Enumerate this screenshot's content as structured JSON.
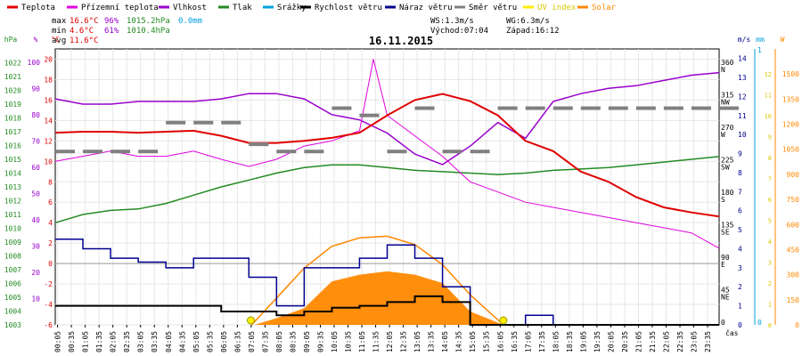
{
  "chart_data": {
    "type": "line",
    "title": "16.11.2015",
    "legend": [
      {
        "key": "teplota",
        "label": "Teplota",
        "color": "#e00000"
      },
      {
        "key": "pocit",
        "label": "Přízemní teplota",
        "color": "#e000e0"
      },
      {
        "key": "vlhkost",
        "label": "Vlhkost",
        "color": "#9900cc"
      },
      {
        "key": "tlak",
        "label": "Tlak",
        "color": "#228b22"
      },
      {
        "key": "srazky",
        "label": "Srážky",
        "color": "#00a0e0"
      },
      {
        "key": "rychlost",
        "label": "Rychlost větru",
        "color": "#000000"
      },
      {
        "key": "naraz",
        "label": "Náraz větru",
        "color": "#000090"
      },
      {
        "key": "smer",
        "label": "Směr větru",
        "color": "#808080"
      },
      {
        "key": "uv",
        "label": "UV index",
        "color": "#ffee00"
      },
      {
        "key": "solar",
        "label": "Solar",
        "color": "#ff8800"
      }
    ],
    "stats": {
      "max": {
        "label": "max",
        "temp": "16.6°C",
        "hum": "96%",
        "press": "1015.2hPa",
        "rain": "0.0mm"
      },
      "min": {
        "label": "min",
        "temp": "4.6°C",
        "hum": "61%",
        "press": "1010.4hPa"
      },
      "avg": {
        "label": "avg",
        "temp": "11.6°C"
      }
    },
    "wind_info": {
      "ws": "WS:1.3m/s",
      "wg": "WG:6.3m/s",
      "sunrise": "Východ:07:04",
      "sunset": "Západ:16:12"
    },
    "axes": {
      "hpa": {
        "unit": "hPa",
        "ticks": [
          "1022",
          "1021",
          "1020",
          "1019",
          "1018",
          "1017",
          "1016",
          "1015",
          "1014",
          "1013",
          "1012",
          "1011",
          "1010",
          "1009",
          "1008",
          "1007",
          "1006",
          "1005",
          "1004",
          "1003"
        ]
      },
      "pct": {
        "unit": "%",
        "ticks": [
          "100",
          "90",
          "80",
          "70",
          "60",
          "50",
          "40",
          "30",
          "20",
          "10"
        ]
      },
      "temp": {
        "unit": "°C",
        "ticks": [
          "20",
          "18",
          "16",
          "14",
          "12",
          "10",
          "8",
          "6",
          "4",
          "2",
          "0",
          "-2",
          "-4",
          "-6"
        ]
      },
      "dir": {
        "ticks": [
          {
            "v": "360",
            "l": "N"
          },
          {
            "v": "315",
            "l": "NW"
          },
          {
            "v": "270",
            "l": "W"
          },
          {
            "v": "225",
            "l": "SW"
          },
          {
            "v": "180",
            "l": "S"
          },
          {
            "v": "135",
            "l": "SE"
          },
          {
            "v": "90",
            "l": "E"
          },
          {
            "v": "45",
            "l": "NE"
          },
          {
            "v": "0",
            "l": ""
          }
        ]
      },
      "ms": {
        "unit": "m/s",
        "ticks": [
          "14",
          "13",
          "12",
          "11",
          "10",
          "9",
          "8",
          "7",
          "6",
          "5",
          "4",
          "3",
          "2",
          "1",
          "0"
        ]
      },
      "mm": {
        "unit": "mm",
        "ticks": [
          "1",
          "0"
        ]
      },
      "w": {
        "unit": "W",
        "ticks": [
          "1500",
          "1350",
          "1200",
          "1050",
          "900",
          "750",
          "600",
          "450",
          "300",
          "150",
          "0"
        ]
      },
      "uv": {
        "ticks": [
          "12",
          "11",
          "10",
          "9",
          "8",
          "7",
          "6",
          "5",
          "4",
          "3",
          "2",
          "1",
          "0"
        ]
      },
      "x_label": "čas",
      "x_ticks": [
        "00:05",
        "00:35",
        "01:05",
        "01:35",
        "02:05",
        "02:35",
        "03:05",
        "03:35",
        "04:05",
        "04:35",
        "05:05",
        "05:35",
        "06:05",
        "06:35",
        "07:05",
        "07:35",
        "08:05",
        "08:35",
        "09:05",
        "09:35",
        "10:05",
        "10:35",
        "11:05",
        "11:35",
        "12:05",
        "12:35",
        "13:05",
        "13:35",
        "14:05",
        "14:35",
        "15:05",
        "15:35",
        "16:05",
        "16:35",
        "17:05",
        "17:35",
        "18:05",
        "18:35",
        "19:05",
        "19:35",
        "20:05",
        "20:35",
        "21:05",
        "21:35",
        "22:05",
        "22:35",
        "23:05",
        "23:35"
      ]
    },
    "series": {
      "teplota": {
        "unit": "°C",
        "points": [
          [
            0,
            12.8
          ],
          [
            1,
            12.9
          ],
          [
            2,
            12.9
          ],
          [
            3,
            12.8
          ],
          [
            4,
            12.9
          ],
          [
            5,
            13.0
          ],
          [
            6,
            12.5
          ],
          [
            7,
            11.8
          ],
          [
            8,
            11.8
          ],
          [
            9,
            12.0
          ],
          [
            10,
            12.3
          ],
          [
            11,
            12.8
          ],
          [
            12,
            14.5
          ],
          [
            13,
            16.0
          ],
          [
            14,
            16.6
          ],
          [
            15,
            15.9
          ],
          [
            16,
            14.5
          ],
          [
            17,
            12.0
          ],
          [
            18,
            11.0
          ],
          [
            19,
            9.0
          ],
          [
            20,
            8.0
          ],
          [
            21,
            6.5
          ],
          [
            22,
            5.5
          ],
          [
            23,
            5.0
          ],
          [
            24,
            4.6
          ]
        ]
      },
      "pocit": {
        "unit": "°C",
        "points": [
          [
            0,
            10.0
          ],
          [
            1,
            10.5
          ],
          [
            2,
            11.0
          ],
          [
            3,
            10.5
          ],
          [
            4,
            10.5
          ],
          [
            5,
            11.0
          ],
          [
            6,
            10.2
          ],
          [
            7,
            9.5
          ],
          [
            8,
            10.2
          ],
          [
            9,
            11.5
          ],
          [
            10,
            12.0
          ],
          [
            11,
            13.0
          ],
          [
            11.5,
            20.0
          ],
          [
            12,
            14.5
          ],
          [
            13,
            12.5
          ],
          [
            14,
            10.5
          ],
          [
            15,
            8.0
          ],
          [
            16,
            7.0
          ],
          [
            17,
            6.0
          ],
          [
            18,
            5.5
          ],
          [
            19,
            5.0
          ],
          [
            20,
            4.5
          ],
          [
            21,
            4.0
          ],
          [
            22,
            3.5
          ],
          [
            23,
            3.0
          ],
          [
            24,
            1.5
          ]
        ]
      },
      "vlhkost": {
        "unit": "%",
        "points": [
          [
            0,
            86
          ],
          [
            1,
            84
          ],
          [
            2,
            84
          ],
          [
            3,
            85
          ],
          [
            4,
            85
          ],
          [
            5,
            85
          ],
          [
            6,
            86
          ],
          [
            7,
            88
          ],
          [
            8,
            88
          ],
          [
            9,
            86
          ],
          [
            10,
            80
          ],
          [
            11,
            78
          ],
          [
            12,
            73
          ],
          [
            13,
            65
          ],
          [
            14,
            61
          ],
          [
            15,
            68
          ],
          [
            16,
            77
          ],
          [
            17,
            71
          ],
          [
            18,
            85
          ],
          [
            19,
            88
          ],
          [
            20,
            90
          ],
          [
            21,
            91
          ],
          [
            22,
            93
          ],
          [
            23,
            95
          ],
          [
            24,
            96
          ]
        ]
      },
      "tlak": {
        "unit": "hPa",
        "points": [
          [
            0,
            1010.4
          ],
          [
            1,
            1011.0
          ],
          [
            2,
            1011.3
          ],
          [
            3,
            1011.4
          ],
          [
            4,
            1011.8
          ],
          [
            5,
            1012.4
          ],
          [
            6,
            1013.0
          ],
          [
            7,
            1013.5
          ],
          [
            8,
            1014.0
          ],
          [
            9,
            1014.4
          ],
          [
            10,
            1014.6
          ],
          [
            11,
            1014.6
          ],
          [
            12,
            1014.4
          ],
          [
            13,
            1014.2
          ],
          [
            14,
            1014.1
          ],
          [
            15,
            1014.0
          ],
          [
            16,
            1013.9
          ],
          [
            17,
            1014.0
          ],
          [
            18,
            1014.2
          ],
          [
            19,
            1014.3
          ],
          [
            20,
            1014.4
          ],
          [
            21,
            1014.6
          ],
          [
            22,
            1014.8
          ],
          [
            23,
            1015.0
          ],
          [
            24,
            1015.2
          ]
        ]
      },
      "rychlost": {
        "unit": "m/s",
        "points": [
          [
            0,
            1
          ],
          [
            1,
            1
          ],
          [
            2,
            1
          ],
          [
            3,
            1
          ],
          [
            4,
            1
          ],
          [
            5,
            1
          ],
          [
            6,
            0.7
          ],
          [
            7,
            0.7
          ],
          [
            8,
            0.5
          ],
          [
            9,
            0.7
          ],
          [
            10,
            0.9
          ],
          [
            11,
            1.0
          ],
          [
            12,
            1.2
          ],
          [
            13,
            1.5
          ],
          [
            14,
            1.2
          ],
          [
            15,
            0
          ],
          [
            16,
            0
          ],
          [
            17,
            0
          ],
          [
            18,
            0
          ],
          [
            19,
            0
          ],
          [
            20,
            0
          ],
          [
            21,
            0
          ],
          [
            22,
            0
          ],
          [
            23,
            0
          ],
          [
            24,
            0
          ]
        ]
      },
      "naraz": {
        "unit": "m/s",
        "points": [
          [
            0,
            4.5
          ],
          [
            1,
            4.0
          ],
          [
            2,
            3.5
          ],
          [
            3,
            3.3
          ],
          [
            4,
            3.0
          ],
          [
            5,
            3.5
          ],
          [
            6,
            3.5
          ],
          [
            7,
            2.5
          ],
          [
            8,
            1.0
          ],
          [
            9,
            3.0
          ],
          [
            10,
            3.0
          ],
          [
            11,
            3.5
          ],
          [
            12,
            4.2
          ],
          [
            13,
            3.5
          ],
          [
            14,
            2.0
          ],
          [
            15,
            0
          ],
          [
            16,
            0
          ],
          [
            17,
            0.5
          ],
          [
            18,
            0
          ],
          [
            19,
            0
          ],
          [
            20,
            0
          ],
          [
            21,
            0
          ],
          [
            22,
            0
          ],
          [
            23,
            0
          ],
          [
            24,
            0
          ]
        ]
      },
      "smer": {
        "unit": "°",
        "points": [
          [
            0,
            240
          ],
          [
            1,
            240
          ],
          [
            2,
            240
          ],
          [
            3,
            240
          ],
          [
            4,
            280
          ],
          [
            5,
            280
          ],
          [
            6,
            280
          ],
          [
            7,
            250
          ],
          [
            8,
            240
          ],
          [
            9,
            240
          ],
          [
            10,
            300
          ],
          [
            11,
            290
          ],
          [
            12,
            240
          ],
          [
            13,
            300
          ],
          [
            14,
            240
          ],
          [
            15,
            240
          ],
          [
            16,
            300
          ],
          [
            17,
            300
          ],
          [
            18,
            300
          ],
          [
            19,
            300
          ],
          [
            20,
            300
          ],
          [
            21,
            300
          ],
          [
            22,
            300
          ],
          [
            23,
            300
          ],
          [
            24,
            300
          ]
        ]
      },
      "solar": {
        "unit": "W",
        "points": [
          [
            7.2,
            0
          ],
          [
            8,
            40
          ],
          [
            9,
            100
          ],
          [
            10,
            260
          ],
          [
            11,
            300
          ],
          [
            12,
            320
          ],
          [
            13,
            300
          ],
          [
            14,
            250
          ],
          [
            15,
            80
          ],
          [
            16.2,
            0
          ]
        ]
      },
      "solar_theoretical": {
        "unit": "W",
        "points": [
          [
            7.1,
            0
          ],
          [
            8,
            160
          ],
          [
            9,
            340
          ],
          [
            10,
            470
          ],
          [
            11,
            520
          ],
          [
            12,
            530
          ],
          [
            13,
            480
          ],
          [
            14,
            360
          ],
          [
            15,
            180
          ],
          [
            16.2,
            0
          ]
        ]
      }
    },
    "markers": [
      {
        "key": "sunrise",
        "value": 7.07
      },
      {
        "key": "sunset",
        "value": 16.2
      }
    ]
  }
}
